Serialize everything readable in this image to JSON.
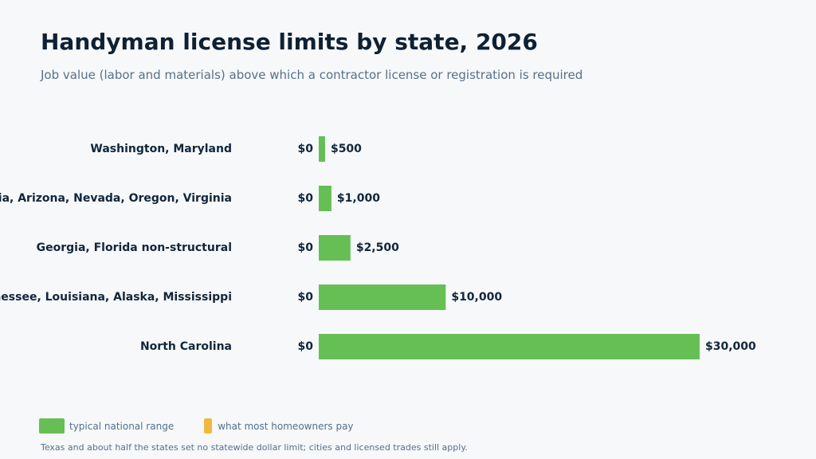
{
  "header": {
    "title": "Handyman license limits by state, 2026",
    "subtitle": "Job value (labor and materials) above which a contractor license or registration is required"
  },
  "legend": {
    "range_label": "typical national range",
    "typical_label": "what most homeowners pay"
  },
  "footnote": "Texas and about half the states set no statewide dollar limit; cities and licensed trades still apply.",
  "colors": {
    "range": "#66bf55",
    "typical": "#f0b840"
  },
  "chart_data": {
    "type": "bar",
    "orientation": "horizontal",
    "title": "Handyman license limits by state, 2026",
    "subtitle": "Job value (labor and materials) above which a contractor license or registration is required",
    "categories": [
      "Washington, Maryland",
      "California, Arizona, Nevada, Oregon, Virginia",
      "Georgia, Florida non-structural",
      "Tennessee, Louisiana, Alaska, Mississippi",
      "North Carolina"
    ],
    "series": [
      {
        "name": "typical national range",
        "low": [
          0,
          0,
          0,
          0,
          0
        ],
        "values": [
          500,
          1000,
          2500,
          10000,
          30000
        ],
        "low_labels": [
          "$0",
          "$0",
          "$0",
          "$0",
          "$0"
        ],
        "value_labels": [
          "$500",
          "$1,000",
          "$2,500",
          "$10,000",
          "$30,000"
        ]
      }
    ],
    "xlim": [
      0,
      30000
    ],
    "grid": false,
    "legend_position": "bottom-left"
  }
}
